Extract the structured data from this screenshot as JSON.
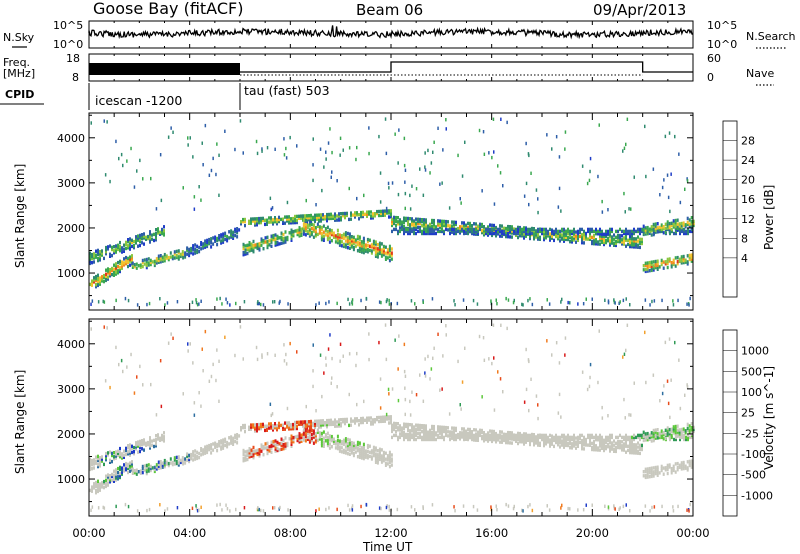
{
  "header": {
    "station": "Goose Bay (fitACF)",
    "beam": "Beam 06",
    "date": "09/Apr/2013"
  },
  "strip_labels": {
    "nsky": "N.Sky",
    "nsky_top": "10^5",
    "nsky_bottom": "10^0",
    "nsearch": "N.Search",
    "nsearch_top": "10^5",
    "nsearch_bottom": "10^0",
    "freq": "Freq.",
    "freq_unit": "[MHz]",
    "freq_top": "18",
    "freq_bottom": "8",
    "nave": "Nave",
    "nave_top": "60",
    "nave_bottom": "0",
    "cpid": "CPID",
    "mode1": "icescan -1200",
    "mode2": "tau (fast) 503"
  },
  "chart_data": [
    {
      "type": "heatmap",
      "title": "",
      "xlabel": "Time UT",
      "ylabel": "Slant Range [km]",
      "x_ticks": [
        "00:00",
        "04:00",
        "08:00",
        "12:00",
        "16:00",
        "20:00",
        "00:00"
      ],
      "xlim_hours": [
        0,
        24
      ],
      "ylim": [
        180,
        4550
      ],
      "y_ticks": [
        1000,
        2000,
        3000,
        4000
      ],
      "colorbar": {
        "label": "Power [dB]",
        "ticks": [
          4,
          8,
          12,
          16,
          20,
          24,
          28
        ],
        "range": [
          0,
          30
        ],
        "colors": [
          "#1f3cc8",
          "#2d5ea8",
          "#2f8a6f",
          "#3aa84f",
          "#8cc63f",
          "#f2c22d",
          "#f28b1e",
          "#e23a1b",
          "#cc0000"
        ]
      }
    },
    {
      "type": "heatmap",
      "title": "",
      "xlabel": "Time UT",
      "ylabel": "Slant Range [km]",
      "x_ticks": [
        "00:00",
        "04:00",
        "08:00",
        "12:00",
        "16:00",
        "20:00",
        "00:00"
      ],
      "xlim_hours": [
        0,
        24
      ],
      "ylim": [
        180,
        4550
      ],
      "y_ticks": [
        1000,
        2000,
        3000,
        4000
      ],
      "colorbar": {
        "label": "Velocity [m s^-1]",
        "ticks": [
          "1000",
          "500",
          "100",
          "25",
          "-25",
          "-100",
          "-500",
          "-1000"
        ],
        "colors": [
          "#1f3cc8",
          "#2d6ea0",
          "#2f9a55",
          "#5cc83a",
          "#c8c8be",
          "#f2a02d",
          "#f07a1e",
          "#e84c1b",
          "#d81a1a"
        ]
      }
    }
  ]
}
